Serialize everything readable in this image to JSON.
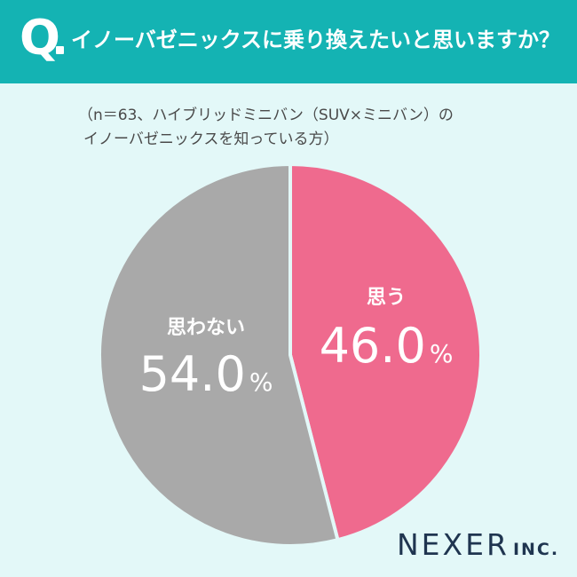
{
  "header": {
    "q_mark": "Q",
    "question": "イノーバゼニックスに乗り換えたいと思いますか？"
  },
  "subtitle": {
    "line1": "（n＝63、ハイブリッドミニバン（SUV×ミニバン）の",
    "line2": "イノーバゼニックスを知っている方）"
  },
  "chart_data": {
    "type": "pie",
    "slices": [
      {
        "label": "思う",
        "value": 46.0,
        "display": "46.0",
        "unit": "%",
        "color": "#ef6a8e"
      },
      {
        "label": "思わない",
        "value": 54.0,
        "display": "54.0",
        "unit": "%",
        "color": "#a9a9a9"
      }
    ],
    "start": "12 o'clock",
    "direction": "clockwise"
  },
  "logo": {
    "main": "NEXER",
    "suffix": "INC."
  }
}
